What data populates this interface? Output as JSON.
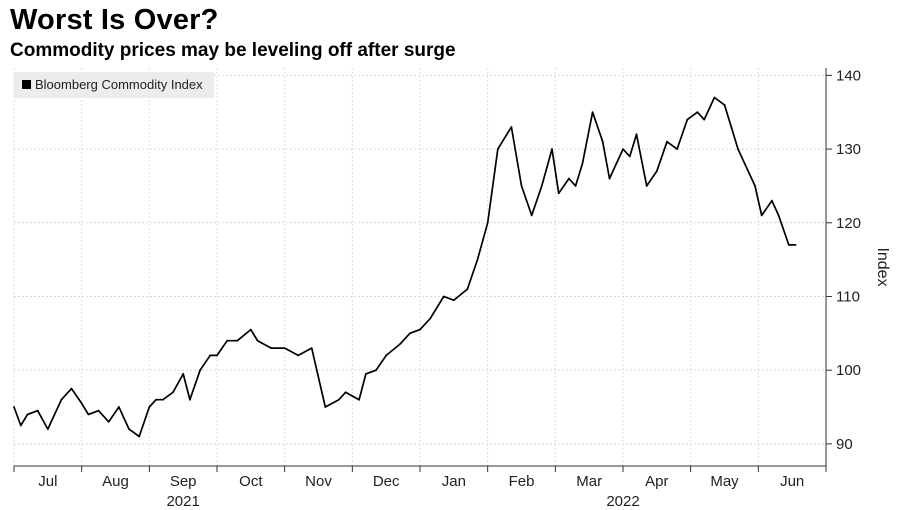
{
  "header": {
    "title": "Worst Is Over?",
    "subtitle": "Commodity prices may be leveling off after surge"
  },
  "chart_data": {
    "type": "line",
    "title": "Worst Is Over?",
    "subtitle": "Commodity prices may be leveling off after surge",
    "ylabel": "Index",
    "xlabel": "",
    "ylim": [
      87,
      141
    ],
    "yticks": [
      90,
      100,
      110,
      120,
      130,
      140
    ],
    "grid": true,
    "legend_placement": "top-left",
    "line_color": "#000000",
    "month_ticks": [
      "Jul",
      "Aug",
      "Sep",
      "Oct",
      "Nov",
      "Dec",
      "Jan",
      "Feb",
      "Mar",
      "Apr",
      "May",
      "Jun"
    ],
    "year_labels": [
      {
        "label": "2021",
        "month_index": 2.5
      },
      {
        "label": "2022",
        "month_index": 9.0
      }
    ],
    "series": [
      {
        "name": "Bloomberg Commodity Index",
        "x": [
          0.0,
          0.1,
          0.2,
          0.35,
          0.5,
          0.7,
          0.85,
          1.0,
          1.1,
          1.25,
          1.4,
          1.55,
          1.7,
          1.85,
          2.0,
          2.1,
          2.2,
          2.35,
          2.5,
          2.6,
          2.75,
          2.9,
          3.0,
          3.15,
          3.3,
          3.5,
          3.6,
          3.8,
          4.0,
          4.2,
          4.4,
          4.6,
          4.8,
          4.9,
          5.0,
          5.1,
          5.2,
          5.35,
          5.5,
          5.7,
          5.85,
          6.0,
          6.15,
          6.35,
          6.5,
          6.7,
          6.85,
          7.0,
          7.15,
          7.35,
          7.5,
          7.65,
          7.8,
          7.95,
          8.05,
          8.2,
          8.3,
          8.4,
          8.55,
          8.7,
          8.8,
          9.0,
          9.1,
          9.2,
          9.35,
          9.5,
          9.65,
          9.8,
          9.95,
          10.1,
          10.2,
          10.35,
          10.5,
          10.6,
          10.7,
          10.8,
          10.95,
          11.05,
          11.2,
          11.3,
          11.45,
          11.55
        ],
        "values": [
          95,
          92.5,
          94,
          94.5,
          92,
          96,
          97.5,
          95.5,
          94,
          94.5,
          93,
          95,
          92,
          91,
          95,
          96,
          96,
          97,
          99.5,
          96,
          100,
          102,
          102,
          104,
          104,
          105.5,
          104,
          103,
          103,
          102,
          103,
          95,
          96,
          97,
          96.5,
          96,
          99.5,
          100,
          102,
          103.5,
          105,
          105.5,
          107,
          110,
          109.5,
          111,
          115,
          120,
          130,
          133,
          125,
          121,
          125,
          130,
          124,
          126,
          125,
          128,
          135,
          131,
          126,
          130,
          129,
          132,
          125,
          127,
          131,
          130,
          134,
          135,
          134,
          137,
          136,
          133,
          130,
          128,
          125,
          121,
          123,
          121,
          117,
          117
        ]
      }
    ]
  }
}
